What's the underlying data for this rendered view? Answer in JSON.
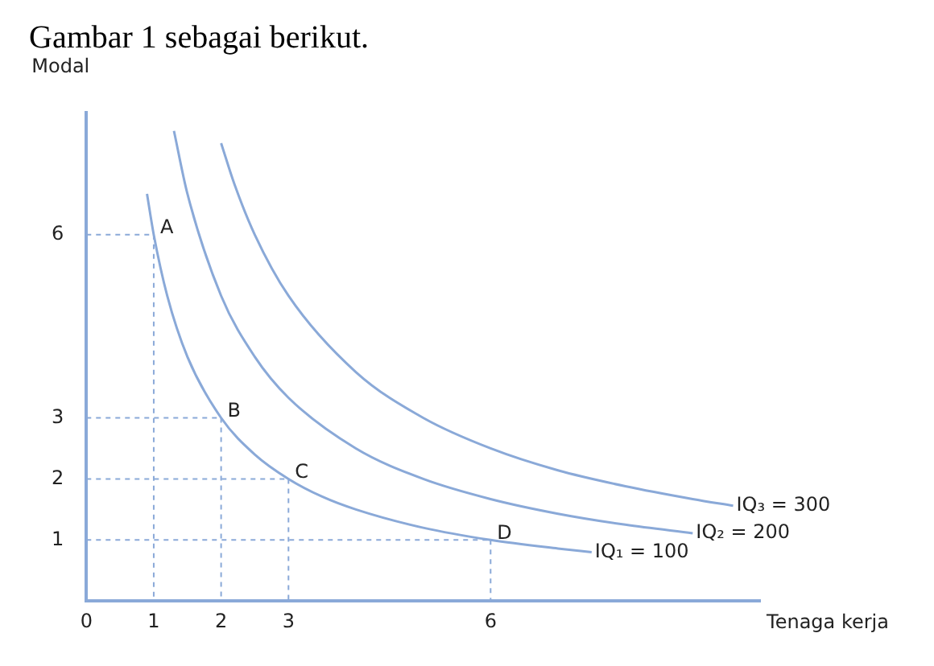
{
  "chart_data": {
    "type": "line",
    "title": "Gambar 1 sebagai berikut.",
    "xlabel": "Tenaga kerja",
    "ylabel": "Modal",
    "xlim": [
      0,
      10
    ],
    "ylim": [
      0,
      8
    ],
    "xticks": [
      0,
      1,
      2,
      3,
      6
    ],
    "yticks": [
      1,
      2,
      3,
      6
    ],
    "grid": false,
    "legend": false,
    "marker": "none",
    "line_style": "solid",
    "series": [
      {
        "name": "IQ₁ = 100",
        "color": "#8aa9d8",
        "x": [
          0.9,
          1,
          1.2,
          1.5,
          2,
          2.5,
          3,
          3.5,
          4,
          5,
          6,
          7,
          7.5
        ],
        "values": [
          6.67,
          6,
          5,
          4,
          3,
          2.4,
          2,
          1.71,
          1.5,
          1.2,
          1,
          0.86,
          0.8
        ]
      },
      {
        "name": "IQ₂ = 200",
        "color": "#8aa9d8",
        "x": [
          1.3,
          1.5,
          2,
          2.5,
          3,
          4,
          5,
          6,
          7,
          8,
          9
        ],
        "values": [
          7.7,
          6.67,
          5,
          4,
          3.33,
          2.5,
          2,
          1.67,
          1.43,
          1.25,
          1.11
        ]
      },
      {
        "name": "IQ₃ = 300",
        "color": "#8aa9d8",
        "x": [
          2,
          2.2,
          2.5,
          3,
          4,
          5,
          6,
          7,
          8,
          9,
          9.6
        ],
        "values": [
          7.5,
          6.82,
          6,
          5,
          3.75,
          3,
          2.5,
          2.14,
          1.88,
          1.67,
          1.56
        ]
      }
    ],
    "annotations": [
      {
        "text": "A",
        "x": 1,
        "y": 6
      },
      {
        "text": "B",
        "x": 2,
        "y": 3
      },
      {
        "text": "C",
        "x": 3,
        "y": 2
      },
      {
        "text": "D",
        "x": 6,
        "y": 1
      }
    ]
  }
}
